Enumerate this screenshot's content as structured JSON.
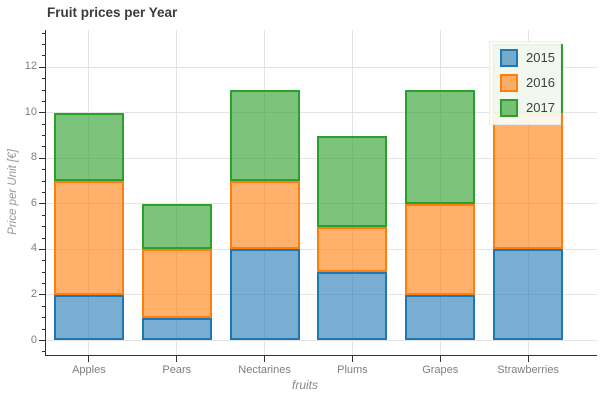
{
  "title": "Fruit prices per Year",
  "chart_data": {
    "type": "bar",
    "stacked": true,
    "title": "Fruit prices per Year",
    "xlabel": "fruits",
    "ylabel": "Price per Unit [€]",
    "categories": [
      "Apples",
      "Pears",
      "Nectarines",
      "Plums",
      "Grapes",
      "Strawberries"
    ],
    "series": [
      {
        "name": "2015",
        "values": [
          2,
          1,
          4,
          3,
          2,
          4
        ],
        "color": "#1f77b4",
        "fill": "rgba(31,119,180,0.6)"
      },
      {
        "name": "2016",
        "values": [
          5,
          3,
          3,
          2,
          4,
          6
        ],
        "color": "#ff7f0e",
        "fill": "rgba(255,127,14,0.62)"
      },
      {
        "name": "2017",
        "values": [
          3,
          2,
          4,
          4,
          5,
          3
        ],
        "color": "#2ca02c",
        "fill": "rgba(44,160,44,0.62)"
      }
    ],
    "stack_totals": [
      10,
      6,
      11,
      9,
      11,
      13
    ],
    "ylim": [
      -0.66,
      13.63
    ],
    "y_major_ticks": [
      0,
      2,
      4,
      6,
      8,
      10,
      12
    ],
    "y_minor_step": 0.5,
    "grid": true,
    "legend": {
      "position": "top-right",
      "entries": [
        "2015",
        "2016",
        "2017"
      ]
    }
  },
  "colors": {
    "grid": "#e4e4e4",
    "axis": "#333333",
    "tick_label": "#7f7f7f",
    "axis_label": "#999999",
    "title_text": "#3b3b3b",
    "legend_bg": "rgba(252,252,246,0.92)"
  }
}
